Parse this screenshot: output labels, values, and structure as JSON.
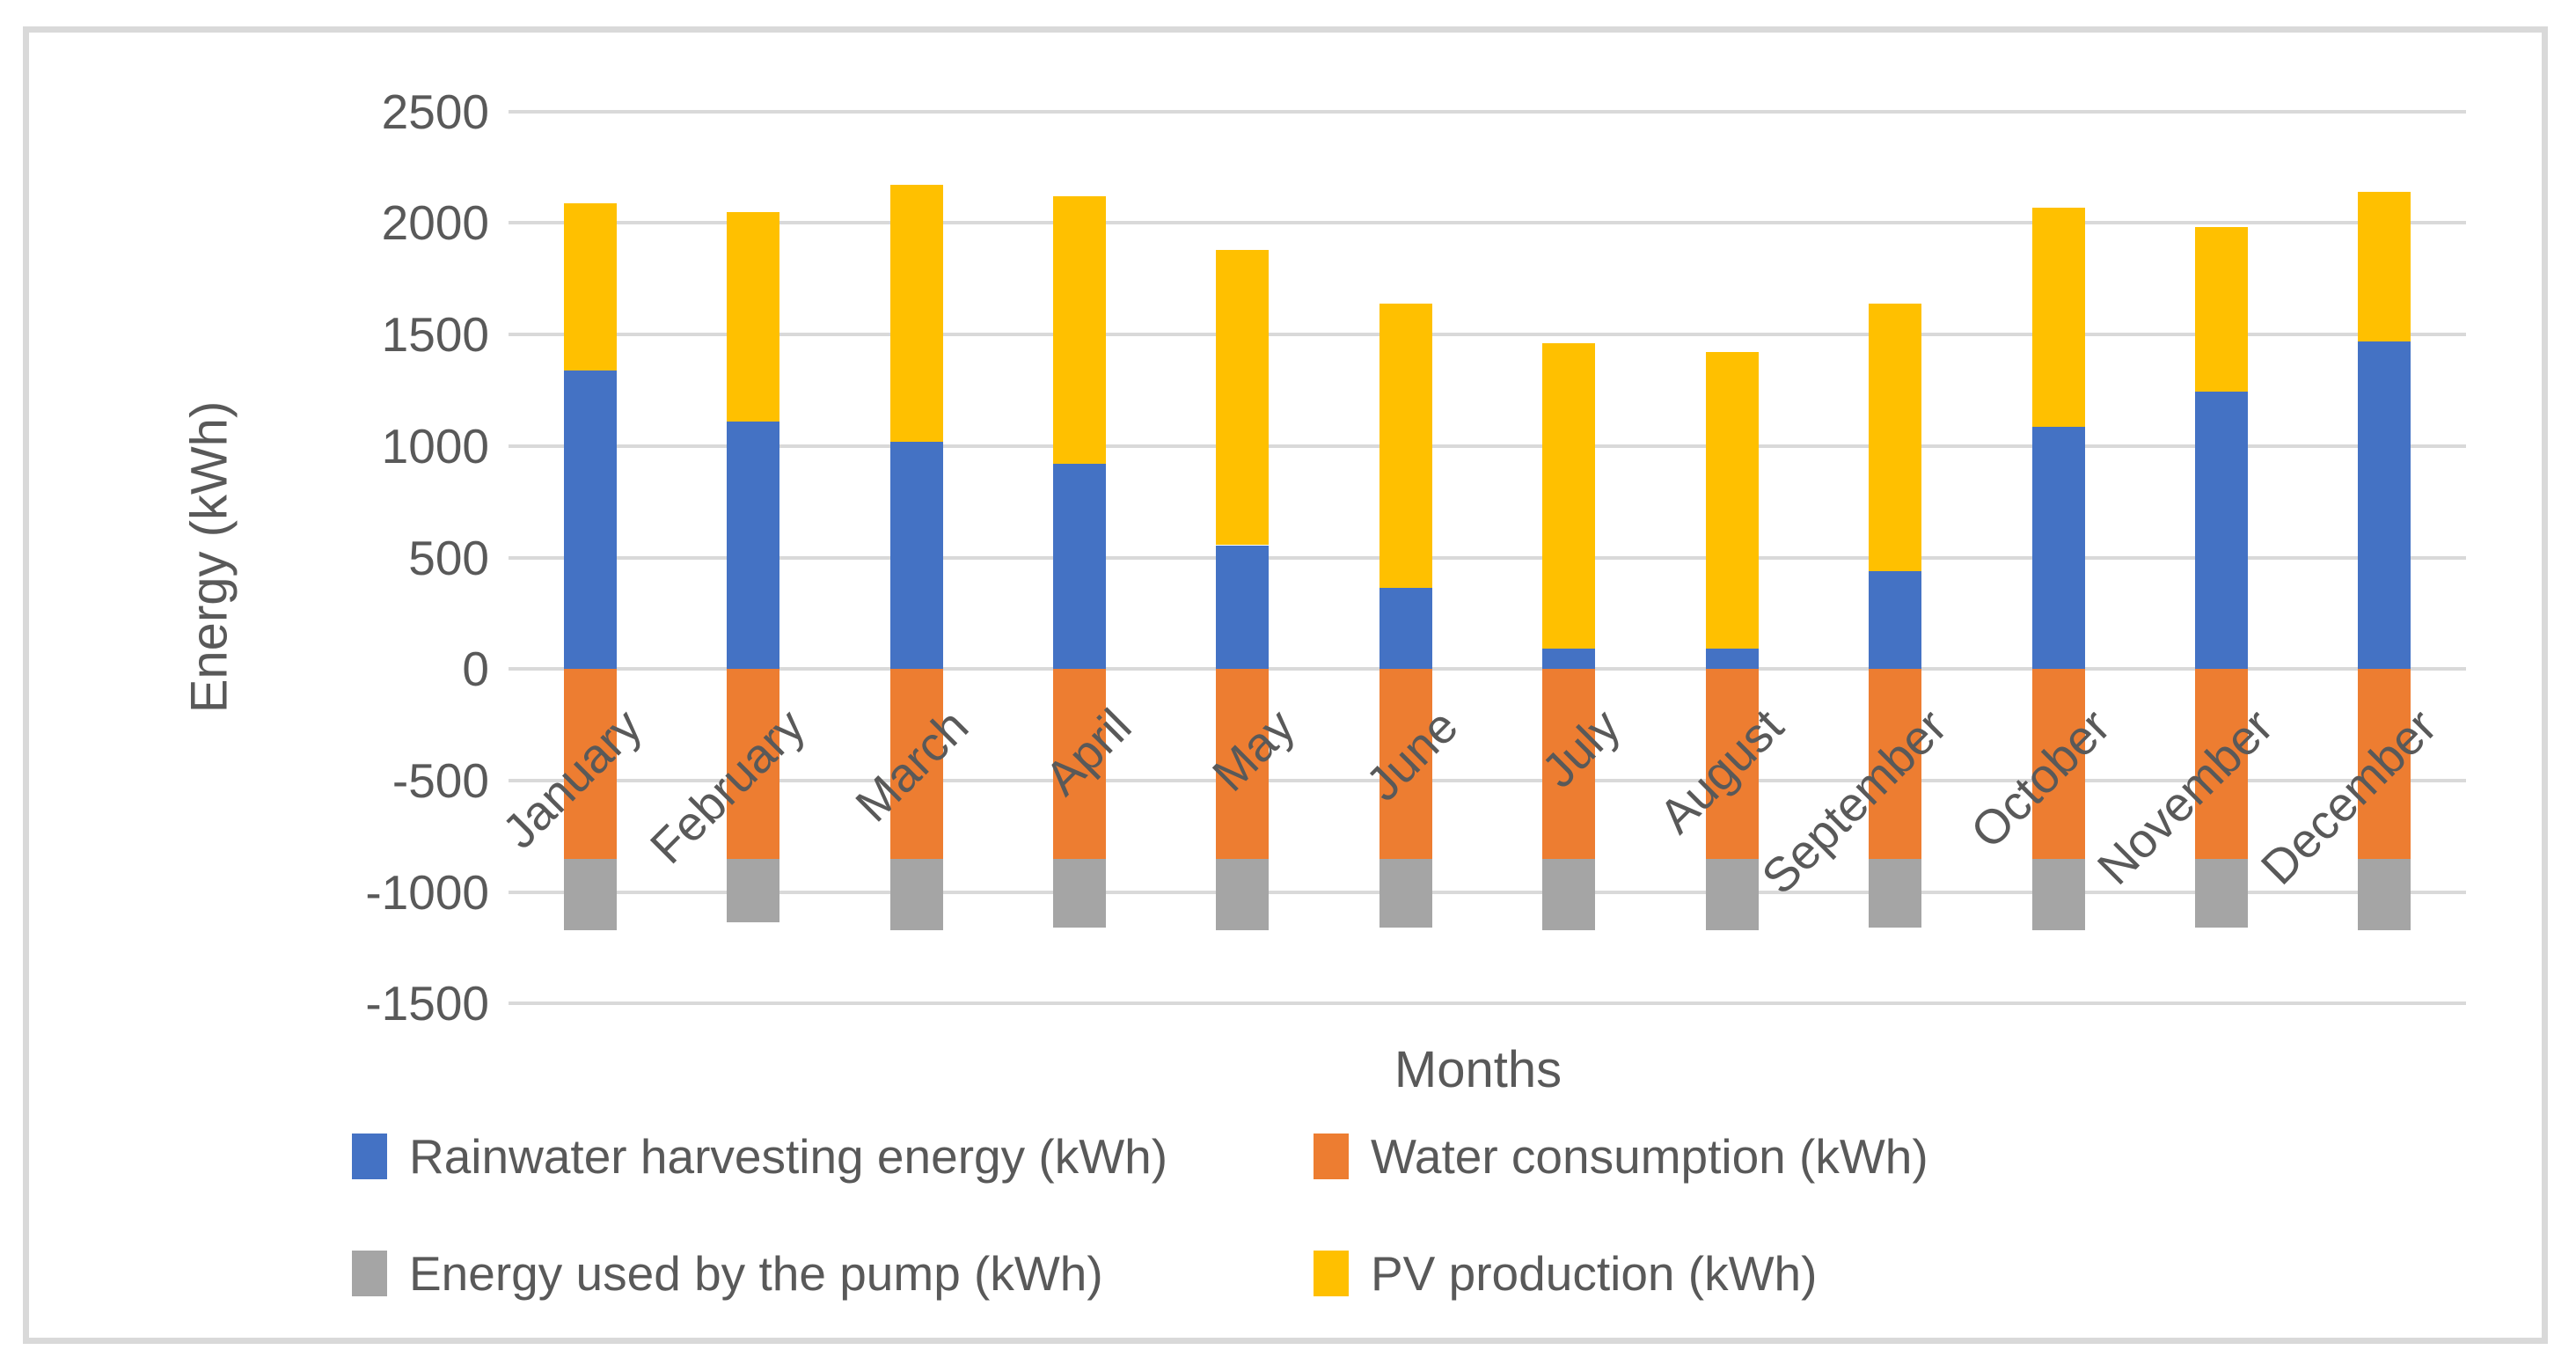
{
  "figure": {
    "background": "#FFFFFF",
    "border_color": "#D9D9D9"
  },
  "chart_data": {
    "type": "bar",
    "stacked": true,
    "title": "",
    "xlabel": "Months",
    "ylabel": "Energy (kWh)",
    "ylim": [
      -1500,
      2500
    ],
    "ytick_step": 500,
    "ytick_labels": [
      "2500",
      "2000",
      "1500",
      "1000",
      "500",
      "0",
      "-500",
      "-1000",
      "-1500"
    ],
    "grid": true,
    "gridline_color": "#D9D9D9",
    "axis_text_color": "#595959",
    "legend_position": "bottom",
    "legend_rows": [
      [
        0,
        1
      ],
      [
        2,
        3
      ]
    ],
    "categories": [
      "January",
      "February",
      "March",
      "April",
      "May",
      "June",
      "July",
      "August",
      "September",
      "October",
      "November",
      "December"
    ],
    "series": [
      {
        "name": "Rainwater harvesting energy (kWh)",
        "color": "#4472C4",
        "values": [
          1340,
          1110,
          1020,
          920,
          555,
          365,
          90,
          90,
          440,
          1085,
          1245,
          1470
        ]
      },
      {
        "name": "Water consumption (kWh)",
        "color": "#ED7D31",
        "values": [
          -850,
          -850,
          -850,
          -850,
          -850,
          -850,
          -850,
          -850,
          -850,
          -850,
          -850,
          -850
        ]
      },
      {
        "name": "Energy used by the pump (kWh)",
        "color": "#A5A5A5",
        "values": [
          -320,
          -285,
          -320,
          -310,
          -320,
          -310,
          -320,
          -320,
          -310,
          -320,
          -310,
          -320
        ]
      },
      {
        "name": "PV production (kWh)",
        "color": "#FFC000",
        "values": [
          750,
          940,
          1150,
          1200,
          1325,
          1275,
          1370,
          1330,
          1200,
          985,
          735,
          670
        ]
      }
    ]
  }
}
